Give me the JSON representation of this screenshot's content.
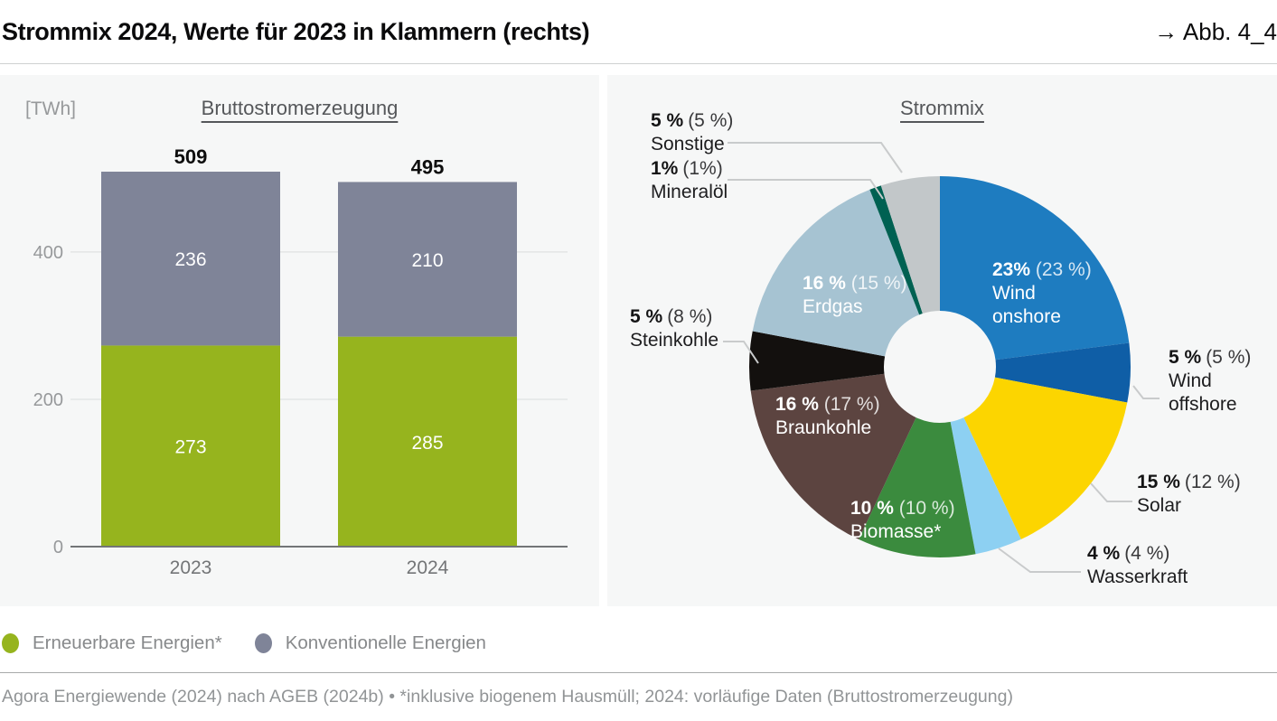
{
  "header": {
    "title": "Strommix 2024, Werte für 2023 in Klammern (rechts)",
    "figure_ref": "→ Abb. 4_4"
  },
  "legend": {
    "items": [
      {
        "label": "Erneuerbare Energien*",
        "color": "#96b41e"
      },
      {
        "label": "Konventionelle Energien",
        "color": "#7f8498"
      }
    ]
  },
  "footer": {
    "source": "Agora Energiewende (2024) nach AGEB (2024b) • *inklusive biogenem Hausmüll; 2024: vorläufige Daten (Bruttostromerzeugung)"
  },
  "chart_data": [
    {
      "type": "bar",
      "stacked": true,
      "title": "Bruttostromerzeugung",
      "unit_label": "[TWh]",
      "categories": [
        "2023",
        "2024"
      ],
      "series": [
        {
          "name": "Erneuerbare Energien*",
          "values": [
            273,
            285
          ],
          "color": "#96b41e"
        },
        {
          "name": "Konventionelle Energien",
          "values": [
            236,
            210
          ],
          "color": "#7f8498"
        }
      ],
      "totals": [
        509,
        495
      ],
      "yticks": [
        0,
        200,
        400
      ],
      "ylim": [
        0,
        520
      ],
      "grid": true
    },
    {
      "type": "pie",
      "donut": true,
      "title": "Strommix",
      "slices": [
        {
          "name": "Wind onshore",
          "value": 23,
          "prev": 23,
          "pct_label": "23%",
          "prev_label": "(23 %)",
          "color": "#1e7cc0"
        },
        {
          "name": "Wind offshore",
          "value": 5,
          "prev": 5,
          "pct_label": "5 %",
          "prev_label": "(5 %)",
          "color": "#0f5ea6"
        },
        {
          "name": "Solar",
          "value": 15,
          "prev": 12,
          "pct_label": "15 %",
          "prev_label": "(12 %)",
          "color": "#fcd500"
        },
        {
          "name": "Wasserkraft",
          "value": 4,
          "prev": 4,
          "pct_label": "4 %",
          "prev_label": "(4 %)",
          "color": "#8dd0f2"
        },
        {
          "name": "Biomasse*",
          "value": 10,
          "prev": 10,
          "pct_label": "10 %",
          "prev_label": "(10 %)",
          "color": "#3b8b3e"
        },
        {
          "name": "Braunkohle",
          "value": 16,
          "prev": 17,
          "pct_label": "16 %",
          "prev_label": "(17 %)",
          "color": "#5c4440"
        },
        {
          "name": "Steinkohle",
          "value": 5,
          "prev": 8,
          "pct_label": "5 %",
          "prev_label": "(8 %)",
          "color": "#13100e"
        },
        {
          "name": "Erdgas",
          "value": 16,
          "prev": 15,
          "pct_label": "16 %",
          "prev_label": "(15 %)",
          "color": "#a6c3d2"
        },
        {
          "name": "Mineralöl",
          "value": 1,
          "prev": 1,
          "pct_label": "1%",
          "prev_label": "(1%)",
          "color": "#006152"
        },
        {
          "name": "Sonstige",
          "value": 5,
          "prev": 5,
          "pct_label": "5 %",
          "prev_label": "(5 %)",
          "color": "#c2c7c9"
        }
      ]
    }
  ]
}
